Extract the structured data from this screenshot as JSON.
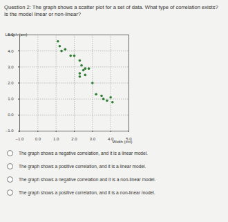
{
  "question": "Question 2: The graph shows a scatter plot for a set of data. What type of correlation exists? Is the model linear or non-linear?",
  "chart_data": {
    "type": "scatter",
    "x_label": "Width (cm)",
    "y_label": "Length (cm)",
    "x": [
      1.1,
      1.2,
      1.5,
      1.3,
      1.8,
      2.0,
      2.3,
      2.4,
      2.6,
      2.5,
      2.8,
      2.3,
      2.3,
      2.6,
      3.0,
      3.2,
      3.5,
      3.6,
      3.8,
      4.0,
      4.1
    ],
    "y": [
      4.6,
      4.3,
      4.1,
      4.0,
      3.7,
      3.7,
      3.4,
      3.1,
      2.9,
      2.8,
      2.9,
      2.6,
      2.4,
      2.5,
      2.0,
      1.3,
      1.2,
      1.0,
      0.9,
      1.1,
      0.8
    ],
    "color": "#2e7d32",
    "xlim": [
      -1,
      5
    ],
    "ylim": [
      -1,
      5
    ],
    "xticks": [
      -1,
      0,
      1,
      2,
      3,
      4,
      5
    ],
    "yticks": [
      -1,
      0,
      1,
      2,
      3,
      4,
      5
    ],
    "grid": true
  },
  "options": [
    "The graph shows a negative correlation, and it is a linear model.",
    "The graph shows a positive correlation, and it is a linear model.",
    "The graph shows a negative correlation and it is a non-linear model.",
    "The graph shows a positive correlation, and it is a non-linear model."
  ]
}
